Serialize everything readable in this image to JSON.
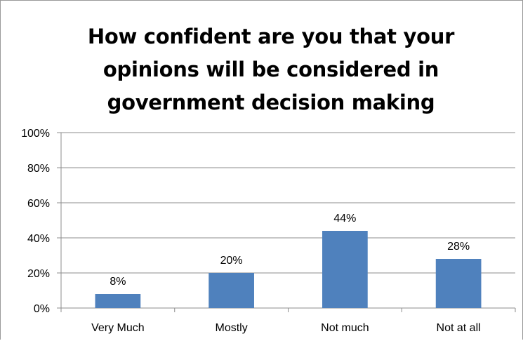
{
  "chart_data": {
    "type": "bar",
    "title": "How confident are you that your opinions will be considered in government decision making",
    "title_lines": [
      "How confident are you that your",
      "opinions will be considered in",
      "government decision making"
    ],
    "categories": [
      "Very Much",
      "Mostly",
      "Not much",
      "Not at all"
    ],
    "values": [
      8,
      20,
      44,
      28
    ],
    "data_labels": [
      "8%",
      "20%",
      "44%",
      "28%"
    ],
    "ylim": [
      0,
      100
    ],
    "yticks": [
      0,
      20,
      40,
      60,
      80,
      100
    ],
    "ytick_labels": [
      "0%",
      "20%",
      "40%",
      "60%",
      "80%",
      "100%"
    ],
    "xlabel": "",
    "ylabel": "",
    "grid": true,
    "legend": "none",
    "bar_color": "#4f81bd",
    "grid_color": "#8c8c8c"
  }
}
